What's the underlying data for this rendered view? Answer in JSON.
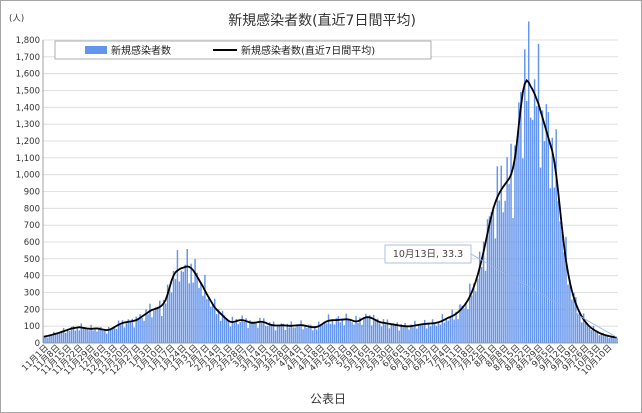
{
  "chart_data": {
    "type": "bar",
    "title": "新規感染者数(直近7日間平均)",
    "y_unit": "(人)",
    "xlabel": "公表日",
    "ylim": [
      0,
      1800
    ],
    "y_ticks": [
      0,
      100,
      200,
      300,
      400,
      500,
      600,
      700,
      800,
      900,
      1000,
      1100,
      1200,
      1300,
      1400,
      1500,
      1600,
      1700,
      1800
    ],
    "grid": true,
    "legend_placement": "top",
    "colors": {
      "bars": "#6495ed",
      "line": "#000000",
      "callout_line": "#9bb3e0"
    },
    "x_start": "11月1日",
    "x_end": "10月13日",
    "x_tick_labels": [
      "11月1日",
      "11月8日",
      "11月15日",
      "11月22日",
      "11月29日",
      "12月6日",
      "12月13日",
      "12月20日",
      "12月27日",
      "1月3日",
      "1月10日",
      "1月17日",
      "1月24日",
      "1月31日",
      "2月7日",
      "2月14日",
      "2月21日",
      "2月28日",
      "3月7日",
      "3月14日",
      "3月21日",
      "3月28日",
      "4月4日",
      "4月11日",
      "4月18日",
      "4月25日",
      "5月2日",
      "5月9日",
      "5月16日",
      "5月23日",
      "5月30日",
      "6月6日",
      "6月13日",
      "6月20日",
      "6月27日",
      "7月4日",
      "7月11日",
      "7月18日",
      "7月25日",
      "8月1日",
      "8月8日",
      "8月15日",
      "8月22日",
      "8月29日",
      "9月5日",
      "9月12日",
      "9月19日",
      "9月26日",
      "10月3日",
      "10月10日"
    ],
    "series": [
      {
        "name": "新規感染者数",
        "type": "bar",
        "values": [
          38,
          40,
          42,
          45,
          48,
          52,
          55,
          58,
          62,
          66,
          70,
          74,
          78,
          82,
          86,
          88,
          90,
          92,
          94,
          92,
          90,
          88,
          86,
          85,
          84,
          85,
          86,
          87,
          85,
          82,
          80,
          78,
          77,
          78,
          82,
          88,
          95,
          102,
          108,
          114,
          118,
          122,
          124,
          126,
          128,
          130,
          132,
          136,
          142,
          150,
          158,
          166,
          174,
          182,
          190,
          196,
          200,
          204,
          208,
          214,
          222,
          236,
          256,
          290,
          330,
          370,
          400,
          420,
          430,
          438,
          444,
          448,
          452,
          455,
          452,
          445,
          432,
          415,
          395,
          375,
          355,
          335,
          312,
          290,
          270,
          250,
          230,
          212,
          198,
          186,
          175,
          164,
          152,
          142,
          132,
          126,
          124,
          126,
          130,
          134,
          136,
          136,
          134,
          130,
          126,
          122,
          120,
          120,
          122,
          124,
          126,
          126,
          124,
          120,
          115,
          110,
          107,
          105,
          104,
          104,
          104,
          105,
          105,
          104,
          103,
          102,
          102,
          103,
          104,
          105,
          106,
          106,
          105,
          103,
          100,
          97,
          95,
          94,
          94,
          96,
          100,
          106,
          114,
          122,
          128,
          132,
          134,
          135,
          136,
          136,
          137,
          138,
          139,
          140,
          141,
          140,
          138,
          134,
          130,
          128,
          130,
          135,
          142,
          148,
          152,
          154,
          152,
          148,
          142,
          136,
          130,
          125,
          122,
          120,
          118,
          116,
          114,
          112,
          110,
          108,
          106,
          104,
          102,
          101,
          100,
          99,
          99,
          100,
          102,
          104,
          106,
          108,
          110,
          112,
          113,
          114,
          115,
          116,
          117,
          118,
          120,
          123,
          127,
          132,
          138,
          144,
          150,
          155,
          160,
          166,
          174,
          183,
          194,
          206,
          220,
          236,
          254,
          276,
          302,
          332,
          366,
          404,
          446,
          492,
          542,
          596,
          652,
          706,
          756,
          800,
          836,
          866,
          890,
          910,
          928,
          944,
          960,
          976,
          1000,
          1040,
          1100,
          1190,
          1300,
          1400,
          1490,
          1540,
          1560,
          1548,
          1525,
          1505,
          1480,
          1450,
          1420,
          1380,
          1340,
          1300,
          1260,
          1220,
          1180,
          1140,
          1080,
          1000,
          900,
          790,
          680,
          580,
          490,
          420,
          360,
          310,
          270,
          235,
          205,
          180,
          158,
          140,
          124,
          110,
          98,
          88,
          80,
          73,
          66,
          60,
          55,
          51,
          47,
          44,
          41,
          38,
          36,
          34,
          33
        ],
        "note": "daily bars read approximately from the chart"
      },
      {
        "name": "新規感染者数(直近7日間平均)",
        "type": "line",
        "values": [
          38,
          40,
          42,
          45,
          48,
          52,
          55,
          58,
          62,
          66,
          70,
          74,
          78,
          82,
          86,
          88,
          90,
          92,
          94,
          92,
          90,
          88,
          86,
          85,
          84,
          85,
          86,
          87,
          85,
          82,
          80,
          78,
          77,
          78,
          82,
          88,
          95,
          102,
          108,
          114,
          118,
          122,
          124,
          126,
          128,
          130,
          132,
          136,
          142,
          150,
          158,
          166,
          174,
          182,
          190,
          196,
          200,
          204,
          208,
          214,
          222,
          236,
          256,
          290,
          330,
          370,
          400,
          420,
          430,
          438,
          444,
          448,
          452,
          455,
          452,
          445,
          432,
          415,
          395,
          375,
          355,
          335,
          312,
          290,
          270,
          250,
          230,
          212,
          198,
          186,
          175,
          164,
          152,
          142,
          132,
          126,
          124,
          126,
          130,
          134,
          136,
          136,
          134,
          130,
          126,
          122,
          120,
          120,
          122,
          124,
          126,
          126,
          124,
          120,
          115,
          110,
          107,
          105,
          104,
          104,
          104,
          105,
          105,
          104,
          103,
          102,
          102,
          103,
          104,
          105,
          106,
          106,
          105,
          103,
          100,
          97,
          95,
          94,
          94,
          96,
          100,
          106,
          114,
          122,
          128,
          132,
          134,
          135,
          136,
          136,
          137,
          138,
          139,
          140,
          141,
          140,
          138,
          134,
          130,
          128,
          130,
          135,
          142,
          148,
          152,
          154,
          152,
          148,
          142,
          136,
          130,
          125,
          122,
          120,
          118,
          116,
          114,
          112,
          110,
          108,
          106,
          104,
          102,
          101,
          100,
          99,
          99,
          100,
          102,
          104,
          106,
          108,
          110,
          112,
          113,
          114,
          115,
          116,
          117,
          118,
          120,
          123,
          127,
          132,
          138,
          144,
          150,
          155,
          160,
          166,
          174,
          183,
          194,
          206,
          220,
          236,
          254,
          276,
          302,
          332,
          366,
          404,
          446,
          492,
          542,
          596,
          652,
          706,
          756,
          800,
          836,
          866,
          890,
          910,
          928,
          944,
          960,
          976,
          1000,
          1040,
          1100,
          1190,
          1300,
          1400,
          1490,
          1540,
          1560,
          1548,
          1525,
          1505,
          1480,
          1450,
          1420,
          1380,
          1340,
          1300,
          1260,
          1220,
          1180,
          1140,
          1080,
          1000,
          900,
          790,
          680,
          580,
          490,
          420,
          360,
          310,
          270,
          235,
          205,
          180,
          158,
          140,
          124,
          110,
          98,
          88,
          80,
          73,
          66,
          60,
          55,
          51,
          47,
          44,
          41,
          38,
          36,
          34,
          33.3
        ]
      }
    ],
    "annotation": {
      "text": "10月13日, 33.3",
      "x": "10月13日",
      "y": 33.3
    }
  }
}
